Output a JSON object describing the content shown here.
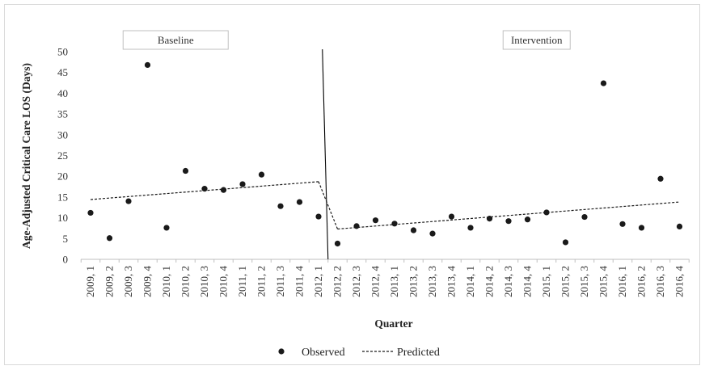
{
  "chart_data": {
    "type": "scatter",
    "title": "",
    "xlabel": "Quarter",
    "ylabel": "Age-Adjusted Critical Care LOS (Days)",
    "ylim": [
      0,
      50
    ],
    "yticks": [
      0,
      5,
      10,
      15,
      20,
      25,
      30,
      35,
      40,
      45,
      50
    ],
    "grid": false,
    "legend_position": "bottom",
    "categories": [
      "2009, 1",
      "2009, 2",
      "2009, 3",
      "2009, 4",
      "2010, 1",
      "2010, 2",
      "2010, 3",
      "2010, 4",
      "2011, 1",
      "2011, 2",
      "2011, 3",
      "2011, 4",
      "2012, 1",
      "2012, 2",
      "2012, 3",
      "2012, 4",
      "2013, 1",
      "2013, 2",
      "2013, 3",
      "2013, 4",
      "2014, 1",
      "2014, 2",
      "2014, 3",
      "2014, 4",
      "2015, 1",
      "2015, 2",
      "2015, 3",
      "2015, 4",
      "2016, 1",
      "2016, 2",
      "2016, 3",
      "2016, 4"
    ],
    "series": [
      {
        "name": "Observed",
        "style": "markers",
        "color": "#1a1a1a",
        "values": [
          11.2,
          5.1,
          14.0,
          46.8,
          7.6,
          21.3,
          17.0,
          16.7,
          18.1,
          20.4,
          12.8,
          13.8,
          10.3,
          3.8,
          8.0,
          9.4,
          8.6,
          7.0,
          6.2,
          10.3,
          7.6,
          9.8,
          9.2,
          9.6,
          11.3,
          4.1,
          10.2,
          42.4,
          8.5,
          7.6,
          19.4,
          7.9
        ]
      },
      {
        "name": "Predicted",
        "style": "dashed-line",
        "color": "#1a1a1a",
        "segments": [
          {
            "from_index": 0,
            "to_index": 12,
            "from_value": 14.4,
            "to_value": 18.7
          },
          {
            "from_index": 12,
            "to_index": 13,
            "from_value": 18.7,
            "to_value": 7.3
          },
          {
            "from_index": 13,
            "to_index": 31,
            "from_value": 7.3,
            "to_value": 13.8
          }
        ]
      }
    ],
    "annotations": [
      {
        "type": "vertical-line",
        "between_categories": [
          "2012, 1",
          "2012, 2"
        ]
      }
    ],
    "phase_labels": [
      {
        "text": "Baseline",
        "over_categories": [
          "2009, 3",
          "2010, 4"
        ]
      },
      {
        "text": "Intervention",
        "over_categories": [
          "2014, 3",
          "2015, 2"
        ]
      }
    ]
  }
}
